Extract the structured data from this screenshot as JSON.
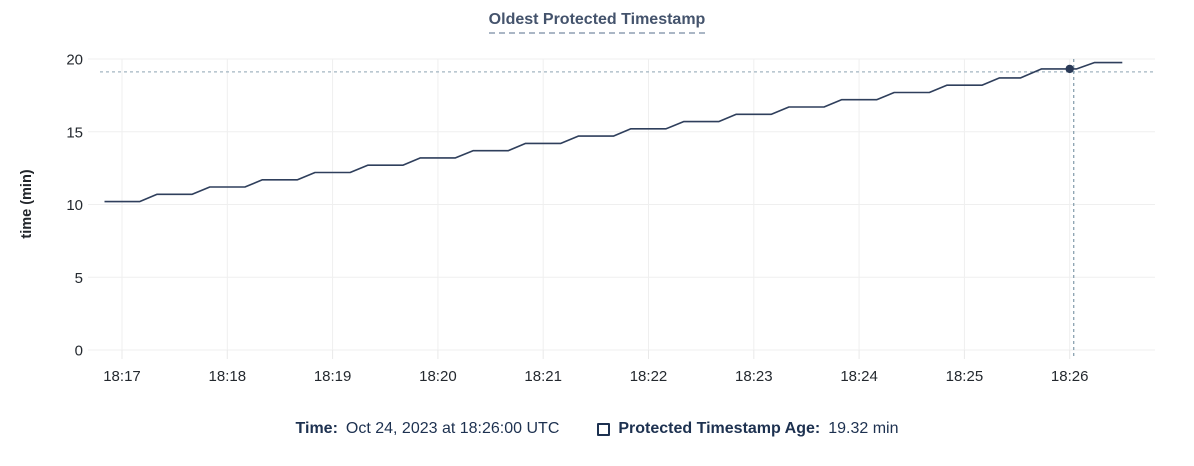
{
  "title": "Oldest Protected Timestamp",
  "colors": {
    "line": "#2f3f5c",
    "dot": "#2a3a57",
    "grid": "#efefef",
    "crosshair_h": "#a3b6c2",
    "crosshair_v": "#8aa2b0",
    "title_text": "#44536c",
    "legend_text": "#1d3150",
    "tick_text": "#24292f"
  },
  "chart_data": {
    "type": "line",
    "title": "Oldest Protected Timestamp",
    "xlabel": "",
    "ylabel": "time (min)",
    "ylim": [
      0,
      20
    ],
    "y_ticks": [
      0,
      5,
      10,
      15,
      20
    ],
    "x_ticks": [
      "18:17",
      "18:18",
      "18:19",
      "18:20",
      "18:21",
      "18:22",
      "18:23",
      "18:24",
      "18:25",
      "18:26"
    ],
    "grid": true,
    "legend_position": "bottom",
    "series": [
      {
        "name": "Protected Timestamp Age",
        "unit": "min",
        "points": [
          [
            "18:16:50",
            10.2
          ],
          [
            "18:17:10",
            10.2
          ],
          [
            "18:17:20",
            10.7
          ],
          [
            "18:17:40",
            10.7
          ],
          [
            "18:17:50",
            11.2
          ],
          [
            "18:18:10",
            11.2
          ],
          [
            "18:18:20",
            11.7
          ],
          [
            "18:18:40",
            11.7
          ],
          [
            "18:18:50",
            12.2
          ],
          [
            "18:19:10",
            12.2
          ],
          [
            "18:19:20",
            12.7
          ],
          [
            "18:19:40",
            12.7
          ],
          [
            "18:19:50",
            13.2
          ],
          [
            "18:20:10",
            13.2
          ],
          [
            "18:20:20",
            13.7
          ],
          [
            "18:20:40",
            13.7
          ],
          [
            "18:20:50",
            14.2
          ],
          [
            "18:21:10",
            14.2
          ],
          [
            "18:21:20",
            14.7
          ],
          [
            "18:21:40",
            14.7
          ],
          [
            "18:21:50",
            15.2
          ],
          [
            "18:22:10",
            15.2
          ],
          [
            "18:22:20",
            15.7
          ],
          [
            "18:22:40",
            15.7
          ],
          [
            "18:22:50",
            16.2
          ],
          [
            "18:23:10",
            16.2
          ],
          [
            "18:23:20",
            16.7
          ],
          [
            "18:23:40",
            16.7
          ],
          [
            "18:23:50",
            17.2
          ],
          [
            "18:24:10",
            17.2
          ],
          [
            "18:24:20",
            17.7
          ],
          [
            "18:24:40",
            17.7
          ],
          [
            "18:24:50",
            18.2
          ],
          [
            "18:25:10",
            18.2
          ],
          [
            "18:25:20",
            18.7
          ],
          [
            "18:25:32",
            18.7
          ],
          [
            "18:25:44",
            19.32
          ],
          [
            "18:26:04",
            19.32
          ],
          [
            "18:26:14",
            19.75
          ],
          [
            "18:26:30",
            19.75
          ]
        ]
      }
    ],
    "highlight": {
      "time": "18:26:00",
      "value": 19.32
    }
  },
  "tooltip": {
    "time_label": "Time:",
    "time_value": "Oct 24, 2023 at 18:26:00 UTC",
    "series_label": "Protected Timestamp Age:",
    "series_value": "19.32 min"
  }
}
